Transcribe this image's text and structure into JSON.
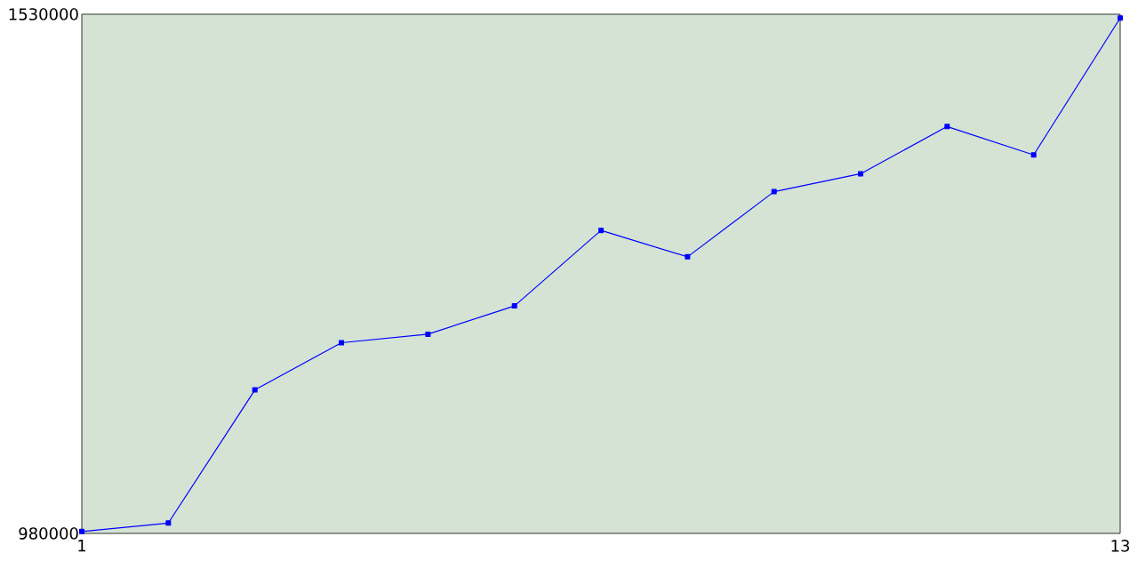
{
  "chart_data": {
    "type": "line",
    "x": [
      1,
      2,
      3,
      4,
      5,
      6,
      7,
      8,
      9,
      10,
      11,
      12,
      13
    ],
    "series": [
      {
        "color": "#0000ff",
        "values": [
          982000,
          991000,
          1132000,
          1182000,
          1191000,
          1221000,
          1301000,
          1273000,
          1342000,
          1361000,
          1411000,
          1381000,
          1526000
        ]
      }
    ],
    "xlim": [
      1,
      13
    ],
    "xticks": [
      1,
      13
    ],
    "ylim": [
      980000,
      1530000
    ],
    "yticks": [
      980000,
      1530000
    ],
    "grid": false,
    "marker": "square",
    "line_style": "solid"
  }
}
